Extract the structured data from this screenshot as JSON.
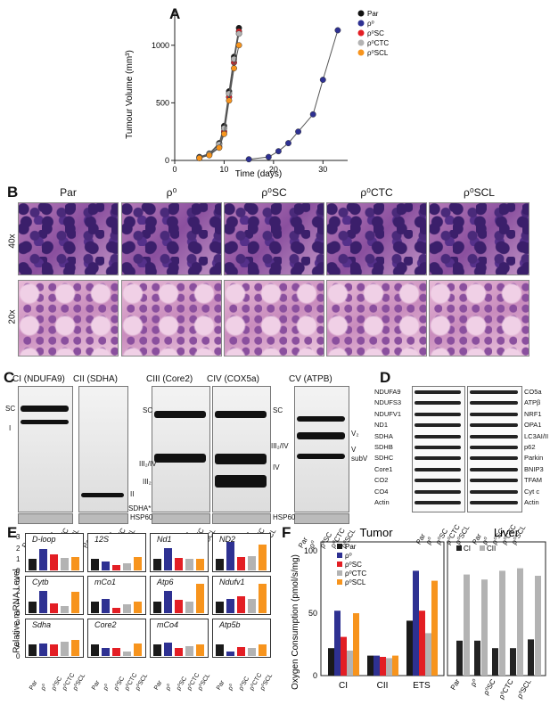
{
  "panels": {
    "A": {
      "letter": "A",
      "ylabel": "Tumour Volume (mm³)",
      "xlabel": "Time (days)",
      "yticks": [
        "0",
        "500",
        "1000"
      ],
      "xticks": [
        "0",
        "10",
        "20",
        "30"
      ],
      "legend": [
        {
          "label": "Par",
          "color": "#111111"
        },
        {
          "label": "ρ⁰",
          "color": "#2e3192"
        },
        {
          "label": "ρ⁰SC",
          "color": "#e31e24"
        },
        {
          "label": "ρ⁰CTC",
          "color": "#b3b3b3"
        },
        {
          "label": "ρ⁰SCL",
          "color": "#f7941d"
        }
      ]
    },
    "B": {
      "letter": "B",
      "columns": [
        "Par",
        "ρ⁰",
        "ρ⁰SC",
        "ρ⁰CTC",
        "ρ⁰SCL"
      ],
      "rows": [
        "40x",
        "20x"
      ]
    },
    "C": {
      "letter": "C",
      "blots": [
        "CI (NDUFA9)",
        "CII (SDHA)",
        "CIII (Core2)",
        "CIV (COX5a)",
        "CV (ATPB)"
      ],
      "labels": {
        "sc1": "SC",
        "i": "I",
        "ii": "II",
        "sdha": "SDHA*",
        "sc3": "SC",
        "iii2iv": "III₂/IV",
        "iii2": "III₂",
        "sc4": "SC",
        "iii2iv_b": "III₂/IV",
        "iv": "IV",
        "v2": "V₂",
        "v": "V",
        "subv": "subV",
        "hsp1": "HSP60",
        "hsp2": "HSP60"
      },
      "lanes": [
        "Par",
        "ρ⁰",
        "ρ⁰SC",
        "ρ⁰CTC",
        "ρ⁰SCL"
      ]
    },
    "D": {
      "letter": "D",
      "left_labels": [
        "NDUFA9",
        "NDUFS3",
        "NDUFV1",
        "ND1",
        "SDHA",
        "SDHB",
        "SDHC",
        "Core1",
        "CO2",
        "CO4",
        "Actin"
      ],
      "right_labels": [
        "CO5a",
        "ATPβ",
        "NRF1",
        "OPA1",
        "LC3AI/II",
        "p62",
        "Parkin",
        "BNIP3",
        "TFAM",
        "Cyt c",
        "Actin"
      ],
      "lanes": [
        "Par",
        "ρ⁰",
        "ρ⁰SC",
        "ρ⁰CTC",
        "ρ⁰SCL"
      ]
    },
    "E": {
      "letter": "E",
      "ylabel": "Relative mRNA Level",
      "genes": [
        "D-loop",
        "12S",
        "Nd1",
        "ND2",
        "Cytb",
        "mCo1",
        "Atp6",
        "Ndufv1",
        "Sdha",
        "Core2",
        "mCo4",
        "Atp5b"
      ],
      "lanes": [
        "Par",
        "ρ⁰",
        "ρ⁰SC",
        "ρ⁰CTC",
        "ρ⁰SCL"
      ],
      "yticks": [
        "0",
        "1",
        "2",
        "3"
      ]
    },
    "F": {
      "letter": "F",
      "ylabel": "Oxygen Consumption (pmol/s/mg)",
      "tumor_title": "Tumor",
      "liver_title": "Liver",
      "yticks": [
        "0",
        "50",
        "100"
      ],
      "tumor_groups": [
        "CI",
        "CII",
        "ETS"
      ],
      "tumor_legend": [
        "Par",
        "ρ⁰",
        "ρ⁰SC",
        "ρ⁰CTC",
        "ρ⁰SCL"
      ],
      "liver_legend": [
        "CI",
        "CII"
      ],
      "liver_lanes": [
        "Par",
        "ρ⁰",
        "ρ⁰SC",
        "ρ⁰CTC",
        "ρ⁰SCL"
      ]
    }
  },
  "colors": {
    "par": "#1a1a1a",
    "rho0": "#2e3192",
    "rho0sc": "#e31e24",
    "rho0ctc": "#b3b3b3",
    "rho0scl": "#f7941d"
  },
  "chart_data": [
    {
      "type": "line",
      "xlabel": "Time (days)",
      "ylabel": "Tumour Volume (mm³)",
      "xlim": [
        0,
        35
      ],
      "ylim": [
        0,
        1300
      ],
      "series": [
        {
          "name": "Par",
          "x": [
            5,
            7,
            9,
            10,
            11,
            12,
            13
          ],
          "y": [
            30,
            60,
            150,
            300,
            600,
            900,
            1150
          ]
        },
        {
          "name": "ρ⁰",
          "x": [
            15,
            19,
            21,
            23,
            25,
            28,
            30,
            33
          ],
          "y": [
            10,
            30,
            80,
            150,
            250,
            400,
            700,
            1130
          ]
        },
        {
          "name": "ρ⁰SC",
          "x": [
            5,
            7,
            9,
            10,
            11,
            12,
            13
          ],
          "y": [
            20,
            50,
            120,
            250,
            550,
            850,
            1120
          ]
        },
        {
          "name": "ρ⁰CTC",
          "x": [
            5,
            7,
            9,
            10,
            11,
            12,
            13
          ],
          "y": [
            25,
            55,
            140,
            280,
            580,
            880,
            1100
          ]
        },
        {
          "name": "ρ⁰SCL",
          "x": [
            5,
            7,
            9,
            10,
            11,
            12,
            13
          ],
          "y": [
            20,
            45,
            110,
            230,
            520,
            800,
            1000
          ]
        }
      ]
    },
    {
      "type": "bar",
      "title": "Tumor",
      "categories": [
        "CI",
        "CII",
        "ETS"
      ],
      "ylim": [
        0,
        100
      ],
      "series": [
        {
          "name": "Par",
          "values": [
            22,
            16,
            44
          ]
        },
        {
          "name": "ρ⁰",
          "values": [
            52,
            16,
            84
          ]
        },
        {
          "name": "ρ⁰SC",
          "values": [
            31,
            15,
            52
          ]
        },
        {
          "name": "ρ⁰CTC",
          "values": [
            20,
            14,
            34
          ]
        },
        {
          "name": "ρ⁰SCL",
          "values": [
            50,
            16,
            76
          ]
        }
      ]
    },
    {
      "type": "bar",
      "title": "Liver",
      "categories": [
        "Par",
        "ρ⁰",
        "ρ⁰SC",
        "ρ⁰CTC",
        "ρ⁰SCL"
      ],
      "ylim": [
        0,
        100
      ],
      "series": [
        {
          "name": "CI",
          "values": [
            28,
            28,
            22,
            22,
            29
          ]
        },
        {
          "name": "CII",
          "values": [
            81,
            77,
            84,
            86,
            80
          ]
        }
      ]
    }
  ],
  "mrna_values": [
    [
      1.0,
      1.9,
      1.4,
      1.1,
      1.2
    ],
    [
      1.0,
      0.8,
      0.5,
      0.6,
      1.2
    ],
    [
      1.0,
      2.0,
      1.1,
      1.0,
      1.0
    ],
    [
      1.0,
      2.5,
      1.2,
      1.3,
      2.3
    ],
    [
      1.0,
      2.0,
      0.9,
      0.6,
      1.9
    ],
    [
      1.0,
      1.3,
      0.5,
      0.8,
      1.0
    ],
    [
      1.0,
      2.0,
      1.2,
      1.0,
      2.6
    ],
    [
      1.0,
      1.3,
      1.5,
      1.3,
      2.6
    ],
    [
      1.0,
      1.1,
      1.0,
      1.3,
      1.4
    ],
    [
      1.0,
      0.7,
      0.7,
      0.4,
      1.1
    ],
    [
      1.0,
      1.2,
      0.7,
      0.9,
      1.0
    ],
    [
      1.0,
      0.4,
      0.8,
      0.7,
      1.0
    ]
  ]
}
